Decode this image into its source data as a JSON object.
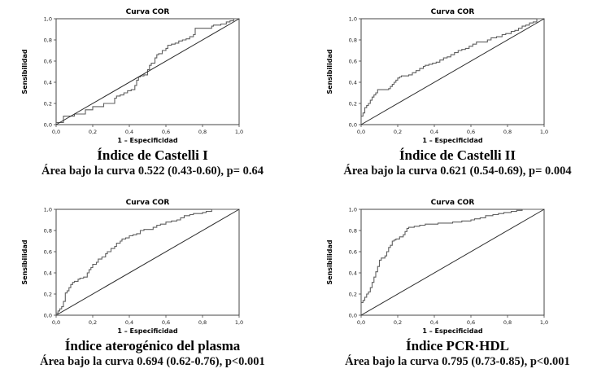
{
  "figure": {
    "background": "#ffffff",
    "text_color": "#000000",
    "frame_color": "#444444"
  },
  "chart_data": [
    {
      "type": "line",
      "title": "Curva COR",
      "xlabel": "1 – Especificidad",
      "ylabel": "Sensibilidad",
      "xlim": [
        0,
        1
      ],
      "ylim": [
        0,
        1
      ],
      "grid": false,
      "legend": "none",
      "x_tick_labels": [
        "0,0",
        "0,2",
        "0,4",
        "0,6",
        "0,8",
        "1,0"
      ],
      "y_tick_labels": [
        "0,0",
        "0,2",
        "0,4",
        "0,6",
        "0,8",
        "1,0"
      ],
      "caption_title": "Índice de Castelli I",
      "caption_stats": "Área bajo la curva 0.522 (0.43-0.60), p= 0.64",
      "auc": 0.522,
      "auc_ci": "0.43-0.60",
      "p_value": "p= 0.64",
      "series": [
        {
          "name": "Curva ROC",
          "style": "step",
          "color": "#5f5f5f",
          "width": 1.1,
          "points": [
            [
              0,
              0
            ],
            [
              0.02,
              0.02
            ],
            [
              0.04,
              0.02
            ],
            [
              0.05,
              0.08
            ],
            [
              0.1,
              0.08
            ],
            [
              0.11,
              0.1
            ],
            [
              0.16,
              0.1
            ],
            [
              0.17,
              0.14
            ],
            [
              0.2,
              0.14
            ],
            [
              0.21,
              0.17
            ],
            [
              0.26,
              0.17
            ],
            [
              0.27,
              0.2
            ],
            [
              0.32,
              0.2
            ],
            [
              0.33,
              0.25
            ],
            [
              0.35,
              0.27
            ],
            [
              0.37,
              0.28
            ],
            [
              0.39,
              0.3
            ],
            [
              0.41,
              0.32
            ],
            [
              0.43,
              0.33
            ],
            [
              0.44,
              0.37
            ],
            [
              0.45,
              0.42
            ],
            [
              0.46,
              0.45
            ],
            [
              0.48,
              0.46
            ],
            [
              0.5,
              0.47
            ],
            [
              0.51,
              0.52
            ],
            [
              0.52,
              0.56
            ],
            [
              0.54,
              0.58
            ],
            [
              0.55,
              0.63
            ],
            [
              0.56,
              0.66
            ],
            [
              0.58,
              0.67
            ],
            [
              0.6,
              0.7
            ],
            [
              0.61,
              0.72
            ],
            [
              0.63,
              0.75
            ],
            [
              0.65,
              0.76
            ],
            [
              0.67,
              0.77
            ],
            [
              0.69,
              0.79
            ],
            [
              0.71,
              0.8
            ],
            [
              0.73,
              0.81
            ],
            [
              0.75,
              0.83
            ],
            [
              0.76,
              0.85
            ],
            [
              0.78,
              0.91
            ],
            [
              0.85,
              0.91
            ],
            [
              0.86,
              0.93
            ],
            [
              0.9,
              0.94
            ],
            [
              0.93,
              0.95
            ],
            [
              0.95,
              0.97
            ],
            [
              0.97,
              0.98
            ],
            [
              1,
              1
            ]
          ]
        },
        {
          "name": "Línea de referencia",
          "style": "straight",
          "color": "#2b2b2b",
          "width": 1,
          "points": [
            [
              0,
              0
            ],
            [
              1,
              1
            ]
          ]
        }
      ]
    },
    {
      "type": "line",
      "title": "Curva COR",
      "xlabel": "1 – Especificidad",
      "ylabel": "Sensibilidad",
      "xlim": [
        0,
        1
      ],
      "ylim": [
        0,
        1
      ],
      "grid": false,
      "legend": "none",
      "x_tick_labels": [
        "0,0",
        "0,2",
        "0,4",
        "0,6",
        "0,8",
        "1,0"
      ],
      "y_tick_labels": [
        "0,0",
        "0,2",
        "0,4",
        "0,6",
        "0,8",
        "1,0"
      ],
      "caption_title": "Índice de Castelli II",
      "caption_stats": "Área bajo la curva 0.621 (0.54-0.69), p= 0.004",
      "auc": 0.621,
      "auc_ci": "0.54-0.69",
      "p_value": "p= 0.004",
      "series": [
        {
          "name": "Curva ROC",
          "style": "step",
          "color": "#5f5f5f",
          "width": 1.1,
          "points": [
            [
              0,
              0
            ],
            [
              0,
              0.05
            ],
            [
              0.01,
              0.08
            ],
            [
              0.02,
              0.11
            ],
            [
              0.02,
              0.14
            ],
            [
              0.03,
              0.16
            ],
            [
              0.04,
              0.18
            ],
            [
              0.05,
              0.2
            ],
            [
              0.06,
              0.23
            ],
            [
              0.07,
              0.26
            ],
            [
              0.08,
              0.28
            ],
            [
              0.09,
              0.3
            ],
            [
              0.1,
              0.33
            ],
            [
              0.15,
              0.33
            ],
            [
              0.16,
              0.34
            ],
            [
              0.17,
              0.36
            ],
            [
              0.18,
              0.38
            ],
            [
              0.19,
              0.4
            ],
            [
              0.2,
              0.42
            ],
            [
              0.21,
              0.44
            ],
            [
              0.22,
              0.45
            ],
            [
              0.26,
              0.46
            ],
            [
              0.28,
              0.47
            ],
            [
              0.3,
              0.49
            ],
            [
              0.32,
              0.51
            ],
            [
              0.34,
              0.53
            ],
            [
              0.35,
              0.55
            ],
            [
              0.37,
              0.56
            ],
            [
              0.39,
              0.57
            ],
            [
              0.41,
              0.58
            ],
            [
              0.43,
              0.59
            ],
            [
              0.45,
              0.61
            ],
            [
              0.47,
              0.63
            ],
            [
              0.49,
              0.64
            ],
            [
              0.51,
              0.66
            ],
            [
              0.53,
              0.68
            ],
            [
              0.55,
              0.7
            ],
            [
              0.57,
              0.71
            ],
            [
              0.59,
              0.72
            ],
            [
              0.61,
              0.74
            ],
            [
              0.63,
              0.76
            ],
            [
              0.65,
              0.78
            ],
            [
              0.69,
              0.78
            ],
            [
              0.71,
              0.8
            ],
            [
              0.74,
              0.82
            ],
            [
              0.77,
              0.83
            ],
            [
              0.79,
              0.85
            ],
            [
              0.82,
              0.86
            ],
            [
              0.84,
              0.88
            ],
            [
              0.86,
              0.89
            ],
            [
              0.88,
              0.91
            ],
            [
              0.9,
              0.93
            ],
            [
              0.92,
              0.94
            ],
            [
              0.94,
              0.96
            ],
            [
              0.96,
              0.97
            ],
            [
              1,
              1
            ]
          ]
        },
        {
          "name": "Línea de referencia",
          "style": "straight",
          "color": "#2b2b2b",
          "width": 1,
          "points": [
            [
              0,
              0
            ],
            [
              1,
              1
            ]
          ]
        }
      ]
    },
    {
      "type": "line",
      "title": "Curva COR",
      "xlabel": "1 – Especificidad",
      "ylabel": "Sensibilidad",
      "xlim": [
        0,
        1
      ],
      "ylim": [
        0,
        1
      ],
      "grid": false,
      "legend": "none",
      "x_tick_labels": [
        "0,0",
        "0,2",
        "0,4",
        "0,6",
        "0,8",
        "1,0"
      ],
      "y_tick_labels": [
        "0,0",
        "0,2",
        "0,4",
        "0,6",
        "0,8",
        "1,0"
      ],
      "caption_title": "Índice aterogénico del plasma",
      "caption_stats": "Área bajo la curva 0.694 (0.62-0.76), p<0.001",
      "auc": 0.694,
      "auc_ci": "0.62-0.76",
      "p_value": "p<0.001",
      "series": [
        {
          "name": "Curva ROC",
          "style": "step",
          "color": "#5f5f5f",
          "width": 1.1,
          "points": [
            [
              0,
              0
            ],
            [
              0.01,
              0.02
            ],
            [
              0.02,
              0.04
            ],
            [
              0.03,
              0.06
            ],
            [
              0.04,
              0.08
            ],
            [
              0.05,
              0.13
            ],
            [
              0.05,
              0.18
            ],
            [
              0.06,
              0.21
            ],
            [
              0.07,
              0.23
            ],
            [
              0.08,
              0.26
            ],
            [
              0.09,
              0.29
            ],
            [
              0.1,
              0.31
            ],
            [
              0.12,
              0.32
            ],
            [
              0.13,
              0.34
            ],
            [
              0.15,
              0.35
            ],
            [
              0.17,
              0.36
            ],
            [
              0.18,
              0.4
            ],
            [
              0.19,
              0.43
            ],
            [
              0.2,
              0.45
            ],
            [
              0.22,
              0.48
            ],
            [
              0.23,
              0.5
            ],
            [
              0.25,
              0.53
            ],
            [
              0.27,
              0.55
            ],
            [
              0.28,
              0.58
            ],
            [
              0.3,
              0.6
            ],
            [
              0.32,
              0.63
            ],
            [
              0.33,
              0.65
            ],
            [
              0.35,
              0.68
            ],
            [
              0.36,
              0.7
            ],
            [
              0.38,
              0.72
            ],
            [
              0.4,
              0.73
            ],
            [
              0.42,
              0.75
            ],
            [
              0.44,
              0.76
            ],
            [
              0.46,
              0.77
            ],
            [
              0.48,
              0.8
            ],
            [
              0.53,
              0.81
            ],
            [
              0.55,
              0.83
            ],
            [
              0.57,
              0.85
            ],
            [
              0.6,
              0.86
            ],
            [
              0.63,
              0.88
            ],
            [
              0.66,
              0.89
            ],
            [
              0.68,
              0.9
            ],
            [
              0.7,
              0.92
            ],
            [
              0.73,
              0.94
            ],
            [
              0.75,
              0.95
            ],
            [
              0.8,
              0.96
            ],
            [
              0.82,
              0.97
            ],
            [
              0.85,
              0.98
            ],
            [
              0.87,
              1
            ],
            [
              1,
              1
            ]
          ]
        },
        {
          "name": "Línea de referencia",
          "style": "straight",
          "color": "#2b2b2b",
          "width": 1,
          "points": [
            [
              0,
              0
            ],
            [
              1,
              1
            ]
          ]
        }
      ]
    },
    {
      "type": "line",
      "title": "Curva COR",
      "xlabel": "1 – Especificidad",
      "ylabel": "Sensibilidad",
      "xlim": [
        0,
        1
      ],
      "ylim": [
        0,
        1
      ],
      "grid": false,
      "legend": "none",
      "x_tick_labels": [
        "0,0",
        "0,2",
        "0,4",
        "0,6",
        "0,8",
        "1,0"
      ],
      "y_tick_labels": [
        "0,0",
        "0,2",
        "0,4",
        "0,6",
        "0,8",
        "1,0"
      ],
      "caption_title": "Índice PCR·HDL",
      "caption_stats": "Área bajo la curva 0.795 (0.73-0.85), p<0.001",
      "auc": 0.795,
      "auc_ci": "0.73-0.85",
      "p_value": "p<0.001",
      "series": [
        {
          "name": "Curva ROC",
          "style": "step",
          "color": "#5f5f5f",
          "width": 1.1,
          "points": [
            [
              0,
              0
            ],
            [
              0,
              0.1
            ],
            [
              0.01,
              0.12
            ],
            [
              0.02,
              0.14
            ],
            [
              0.03,
              0.17
            ],
            [
              0.04,
              0.2
            ],
            [
              0.05,
              0.22
            ],
            [
              0.06,
              0.26
            ],
            [
              0.07,
              0.31
            ],
            [
              0.08,
              0.36
            ],
            [
              0.09,
              0.41
            ],
            [
              0.1,
              0.46
            ],
            [
              0.1,
              0.5
            ],
            [
              0.11,
              0.52
            ],
            [
              0.13,
              0.54
            ],
            [
              0.14,
              0.56
            ],
            [
              0.15,
              0.6
            ],
            [
              0.16,
              0.64
            ],
            [
              0.17,
              0.66
            ],
            [
              0.18,
              0.7
            ],
            [
              0.19,
              0.71
            ],
            [
              0.21,
              0.72
            ],
            [
              0.23,
              0.74
            ],
            [
              0.24,
              0.76
            ],
            [
              0.25,
              0.79
            ],
            [
              0.26,
              0.82
            ],
            [
              0.29,
              0.83
            ],
            [
              0.32,
              0.84
            ],
            [
              0.35,
              0.85
            ],
            [
              0.38,
              0.86
            ],
            [
              0.42,
              0.86
            ],
            [
              0.45,
              0.87
            ],
            [
              0.5,
              0.87
            ],
            [
              0.55,
              0.88
            ],
            [
              0.6,
              0.89
            ],
            [
              0.62,
              0.9
            ],
            [
              0.65,
              0.91
            ],
            [
              0.68,
              0.92
            ],
            [
              0.72,
              0.94
            ],
            [
              0.75,
              0.95
            ],
            [
              0.78,
              0.96
            ],
            [
              0.82,
              0.97
            ],
            [
              0.85,
              0.98
            ],
            [
              0.88,
              0.99
            ],
            [
              0.9,
              1
            ],
            [
              1,
              1
            ]
          ]
        },
        {
          "name": "Línea de referencia",
          "style": "straight",
          "color": "#2b2b2b",
          "width": 1,
          "points": [
            [
              0,
              0
            ],
            [
              1,
              1
            ]
          ]
        }
      ]
    }
  ]
}
